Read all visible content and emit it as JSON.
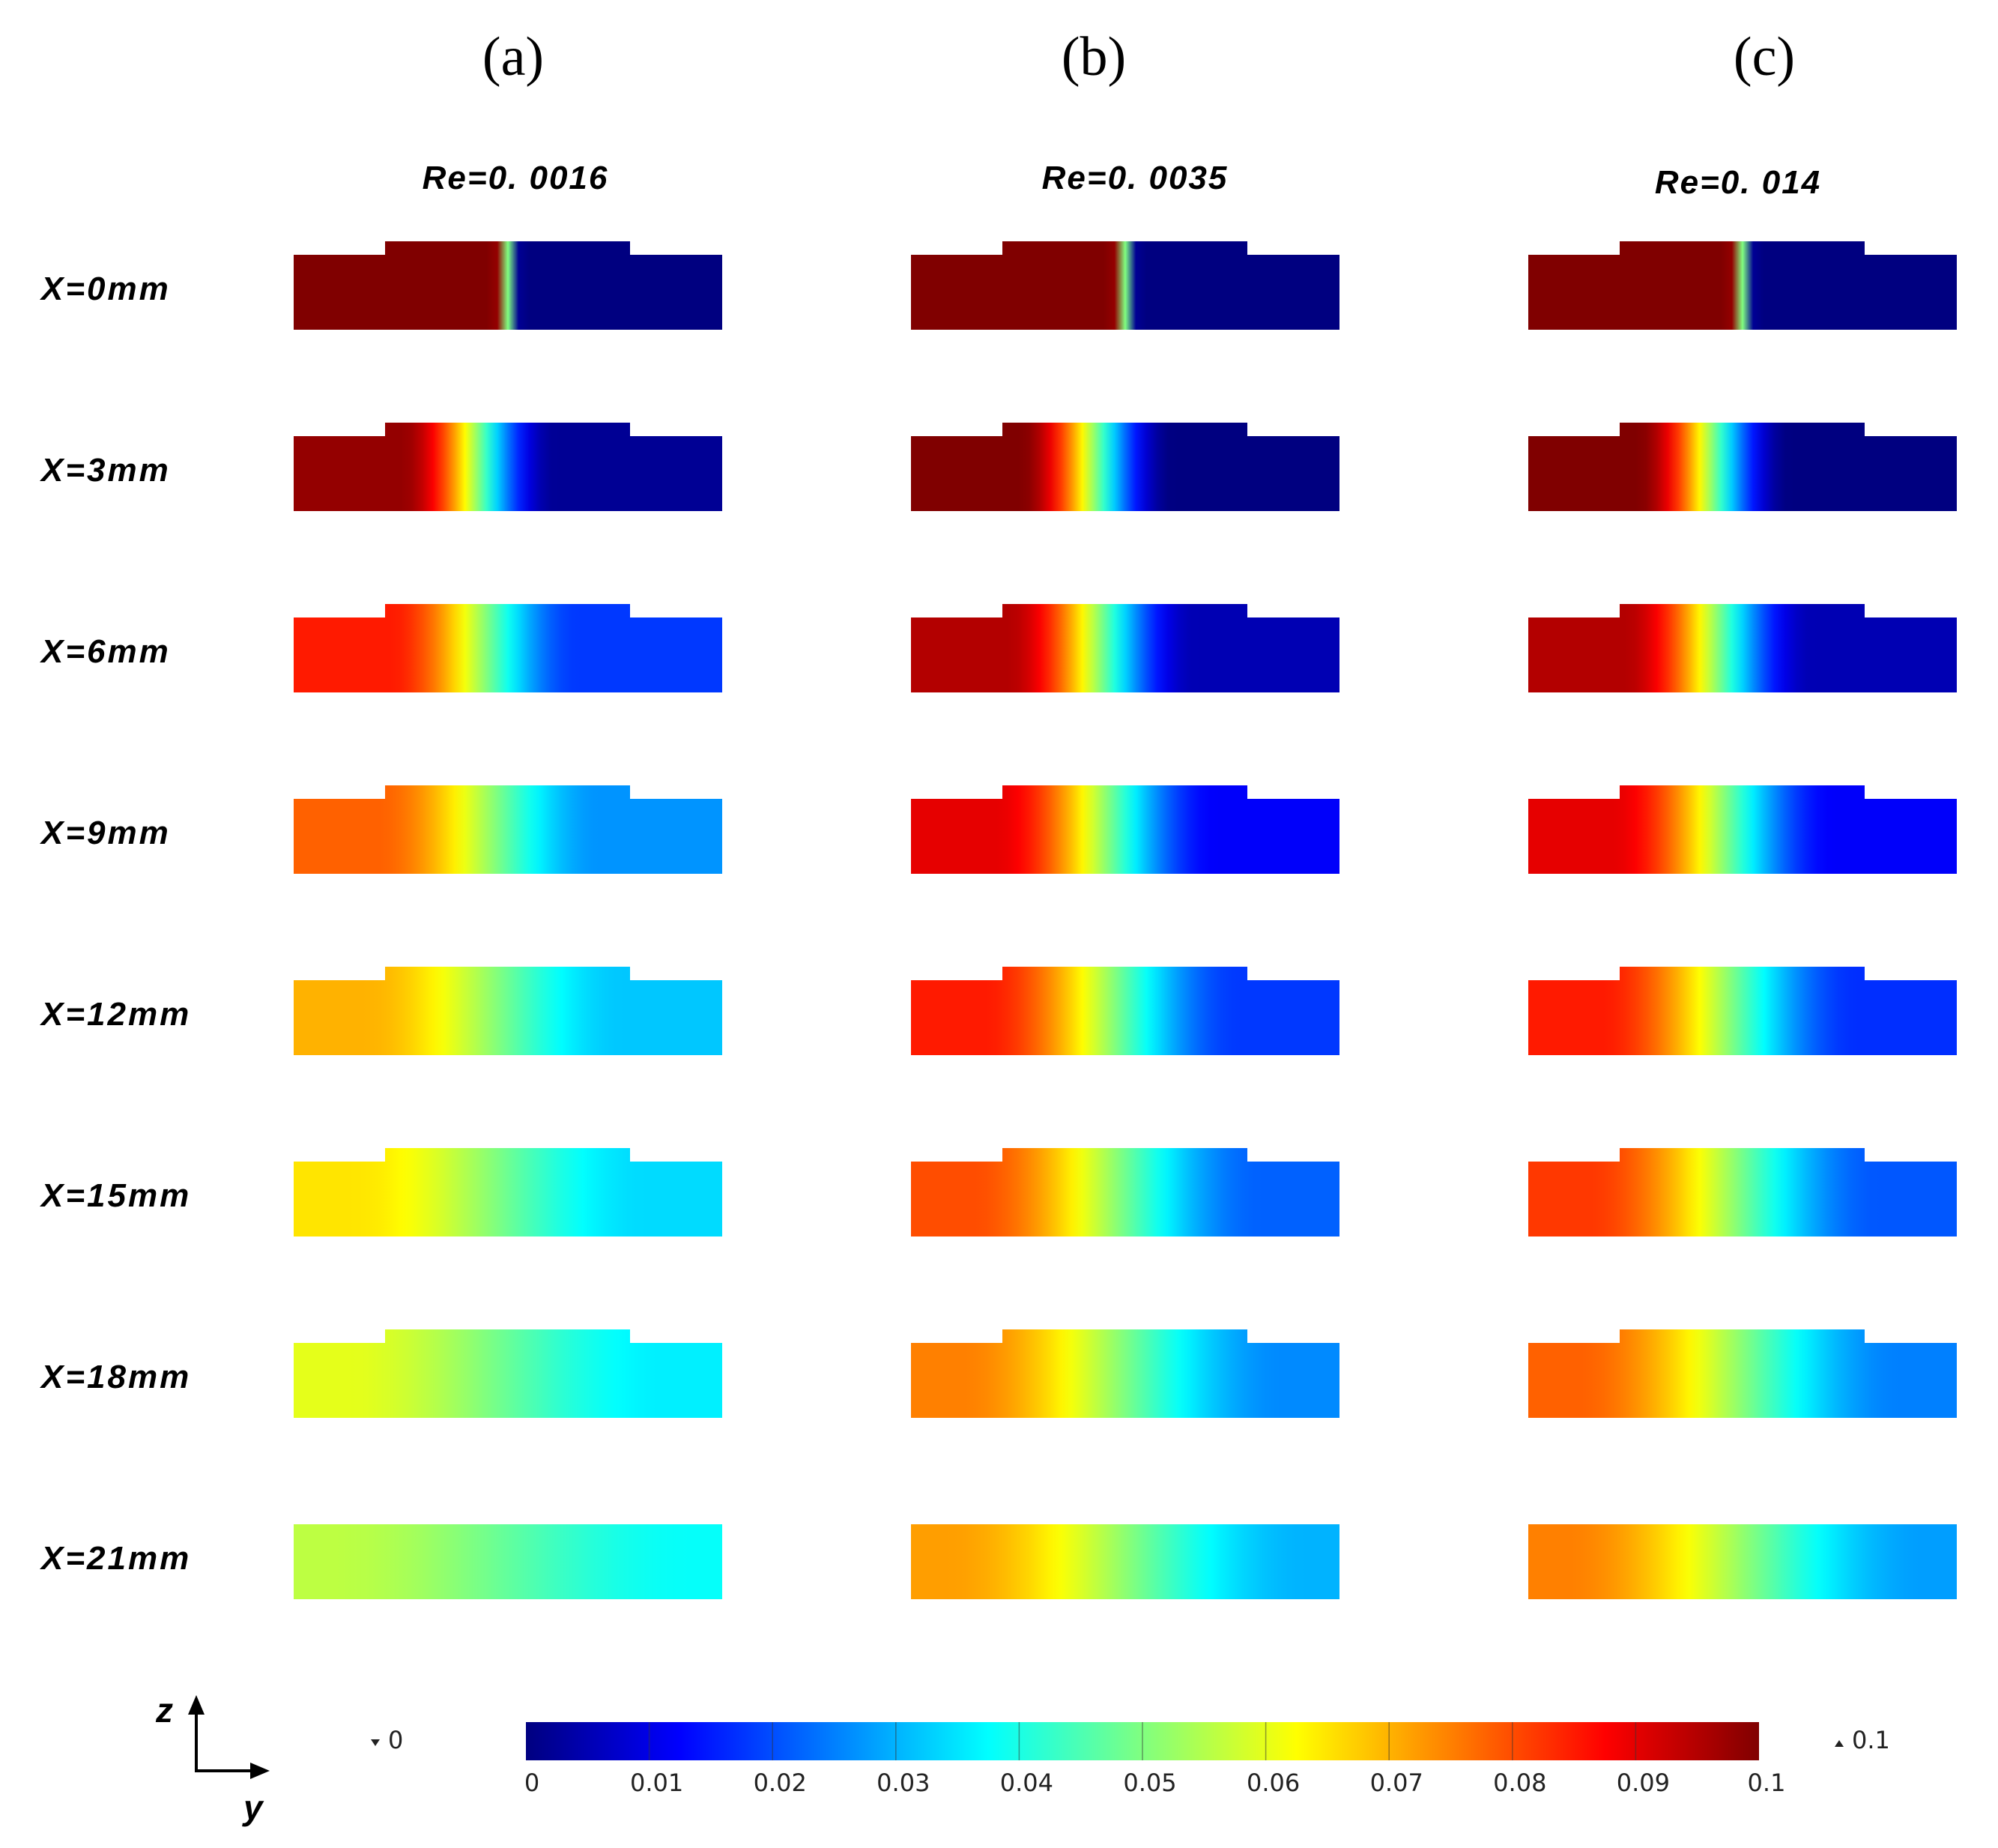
{
  "chart_data": {
    "type": "heatmap",
    "panels": [
      {
        "letter": "(a)",
        "re_label": "Re=0. 0016",
        "re": 0.0016,
        "left_values": [
          0.1,
          0.098,
          0.085,
          0.078,
          0.07,
          0.065,
          0.06,
          0.056
        ],
        "right_values": [
          0.0,
          0.002,
          0.018,
          0.027,
          0.032,
          0.034,
          0.036,
          0.038
        ]
      },
      {
        "letter": "(b)",
        "re_label": "Re=0. 0035",
        "re": 0.0035,
        "left_values": [
          0.1,
          0.1,
          0.095,
          0.09,
          0.085,
          0.08,
          0.075,
          0.072
        ],
        "right_values": [
          0.0,
          0.0,
          0.005,
          0.012,
          0.018,
          0.022,
          0.026,
          0.03
        ]
      },
      {
        "letter": "(c)",
        "re_label": "Re=0. 014",
        "re": 0.014,
        "left_values": [
          0.1,
          0.1,
          0.095,
          0.09,
          0.085,
          0.082,
          0.078,
          0.075
        ],
        "right_values": [
          0.0,
          0.0,
          0.005,
          0.012,
          0.017,
          0.021,
          0.025,
          0.028
        ]
      }
    ],
    "rows": [
      "X=0mm",
      "X=3mm",
      "X=6mm",
      "X=9mm",
      "X=12mm",
      "X=15mm",
      "X=18mm",
      "X=21mm"
    ],
    "x_positions_mm": [
      0,
      3,
      6,
      9,
      12,
      15,
      18,
      21
    ],
    "colorbar": {
      "min": 0,
      "max": 0.1,
      "min_marker": "0",
      "max_marker": "0.1",
      "ticks": [
        "0",
        "0.01",
        "0.02",
        "0.03",
        "0.04",
        "0.05",
        "0.06",
        "0.07",
        "0.08",
        "0.09",
        "0.1"
      ],
      "colormap": "jet"
    },
    "axes": {
      "vertical": "z",
      "horizontal": "y"
    }
  }
}
